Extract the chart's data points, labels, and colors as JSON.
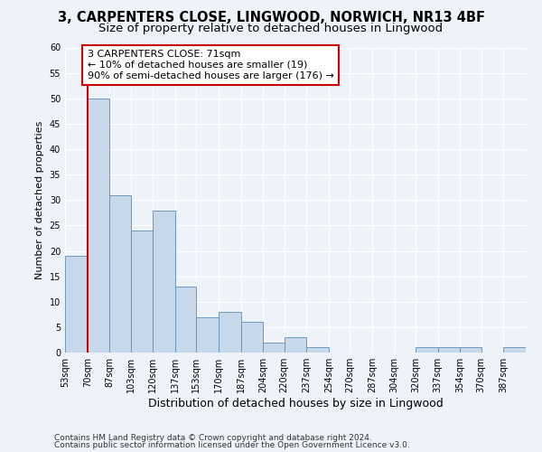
{
  "title1": "3, CARPENTERS CLOSE, LINGWOOD, NORWICH, NR13 4BF",
  "title2": "Size of property relative to detached houses in Lingwood",
  "xlabel": "Distribution of detached houses by size in Lingwood",
  "ylabel": "Number of detached properties",
  "bin_labels": [
    "53sqm",
    "70sqm",
    "87sqm",
    "103sqm",
    "120sqm",
    "137sqm",
    "153sqm",
    "170sqm",
    "187sqm",
    "204sqm",
    "220sqm",
    "237sqm",
    "254sqm",
    "270sqm",
    "287sqm",
    "304sqm",
    "320sqm",
    "337sqm",
    "354sqm",
    "370sqm",
    "387sqm"
  ],
  "bar_heights": [
    19,
    50,
    31,
    24,
    28,
    13,
    7,
    8,
    6,
    2,
    3,
    1,
    0,
    0,
    0,
    0,
    1,
    1,
    1,
    0,
    1
  ],
  "bar_color": "#c8d8eb",
  "bar_edge_color": "#5b8db8",
  "property_line_x": 70,
  "bin_edges": [
    53,
    70,
    87,
    103,
    120,
    137,
    153,
    170,
    187,
    204,
    220,
    237,
    254,
    270,
    287,
    304,
    320,
    337,
    354,
    370,
    387,
    404
  ],
  "annotation_text": "3 CARPENTERS CLOSE: 71sqm\n← 10% of detached houses are smaller (19)\n90% of semi-detached houses are larger (176) →",
  "annotation_box_color": "#ffffff",
  "annotation_box_edge": "#cc0000",
  "property_line_color": "#cc0000",
  "ylim": [
    0,
    60
  ],
  "yticks": [
    0,
    5,
    10,
    15,
    20,
    25,
    30,
    35,
    40,
    45,
    50,
    55,
    60
  ],
  "footer1": "Contains HM Land Registry data © Crown copyright and database right 2024.",
  "footer2": "Contains public sector information licensed under the Open Government Licence v3.0.",
  "background_color": "#eef2f9",
  "grid_color": "#ffffff",
  "title1_fontsize": 10.5,
  "title2_fontsize": 9.5,
  "xlabel_fontsize": 9,
  "ylabel_fontsize": 8,
  "tick_fontsize": 7,
  "annotation_fontsize": 8,
  "footer_fontsize": 6.5
}
